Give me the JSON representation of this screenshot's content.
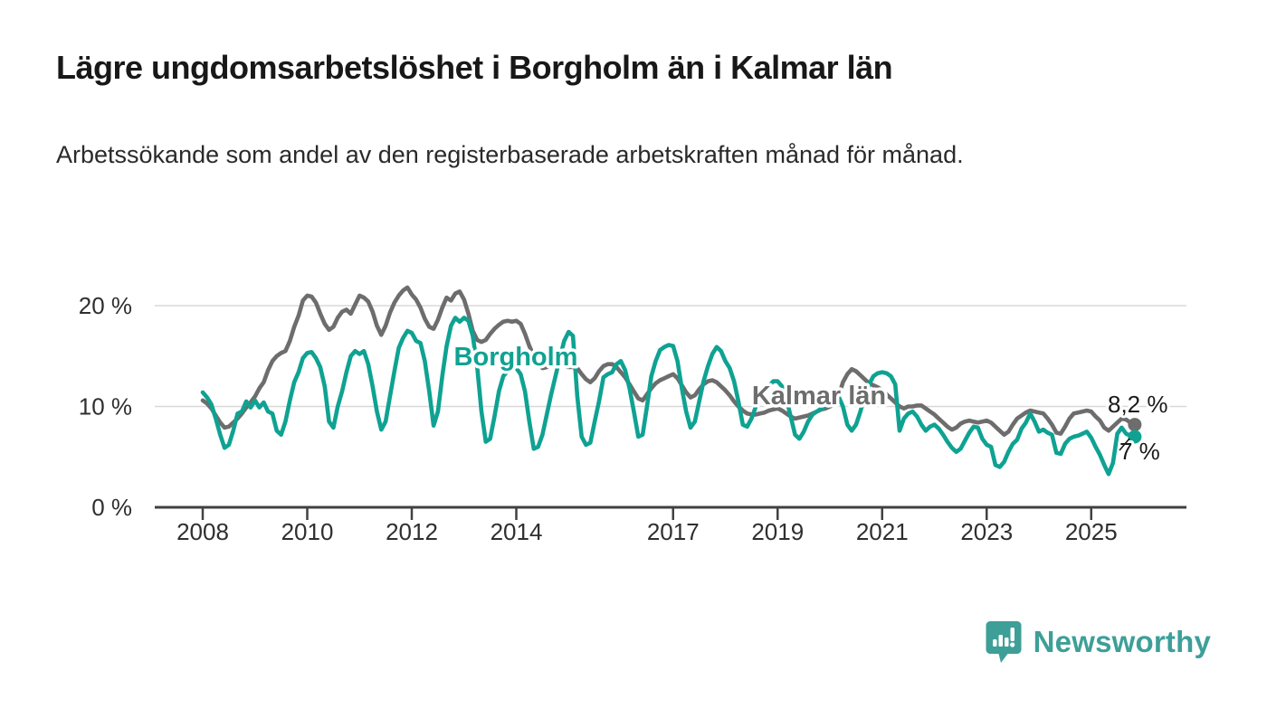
{
  "title": "Lägre ungdomsarbetslöshet i Borgholm än i Kalmar län",
  "subtitle": "Arbetssökande som andel av den registerbaserade arbetskraften månad för månad.",
  "branding": {
    "name": "Newsworthy",
    "color": "#3d9f98",
    "icon": "bar-chart-speech-bubble-icon"
  },
  "chart_data": {
    "type": "line",
    "unit": "%",
    "frequency": "monthly",
    "x_start": "2008-01",
    "x_end": "2025-11",
    "grid": "horizontal",
    "ylim": [
      0,
      23
    ],
    "y_ticks": [
      0,
      10,
      20
    ],
    "y_tick_labels": [
      "0 %",
      "10 %",
      "20 %"
    ],
    "x_tick_years": [
      2008,
      2010,
      2012,
      2014,
      2017,
      2019,
      2021,
      2023,
      2025
    ],
    "x_tick_labels": [
      "2008",
      "2010",
      "2012",
      "2014",
      "2017",
      "2019",
      "2021",
      "2023",
      "2025"
    ],
    "series": [
      {
        "name": "Kalmar län",
        "color": "#6d6d6d",
        "end_value": 8.2,
        "end_label": "8,2 %",
        "values": [
          10.6,
          10.3,
          9.8,
          9.1,
          8.4,
          7.9,
          8.0,
          8.4,
          8.8,
          9.3,
          9.9,
          10.4,
          11.0,
          11.8,
          12.4,
          13.6,
          14.5,
          15.0,
          15.3,
          15.5,
          16.5,
          17.9,
          19.0,
          20.5,
          21.0,
          20.9,
          20.3,
          19.2,
          18.2,
          17.6,
          17.9,
          18.8,
          19.4,
          19.6,
          19.2,
          20.1,
          21.0,
          20.8,
          20.4,
          19.4,
          18.0,
          17.1,
          18.0,
          19.3,
          20.3,
          21.0,
          21.5,
          21.8,
          21.1,
          20.6,
          19.8,
          18.7,
          17.9,
          17.7,
          18.6,
          19.8,
          20.8,
          20.5,
          21.2,
          21.4,
          20.6,
          19.2,
          17.5,
          16.6,
          16.4,
          16.6,
          17.2,
          17.7,
          18.1,
          18.4,
          18.5,
          18.4,
          18.5,
          18.2,
          17.2,
          16.0,
          15.0,
          14.2,
          13.8,
          13.9,
          14.1,
          14.2,
          14.3,
          14.0,
          13.9,
          13.9,
          13.8,
          13.2,
          12.7,
          12.4,
          12.8,
          13.5,
          14.0,
          14.2,
          14.2,
          13.9,
          13.4,
          12.9,
          12.2,
          11.5,
          10.8,
          10.6,
          11.2,
          11.8,
          12.3,
          12.6,
          12.8,
          13.0,
          13.2,
          12.8,
          12.1,
          11.4,
          10.9,
          11.1,
          11.7,
          12.2,
          12.5,
          12.6,
          12.4,
          12.0,
          11.6,
          11.1,
          10.5,
          10.0,
          9.6,
          9.3,
          9.2,
          9.2,
          9.3,
          9.4,
          9.6,
          9.7,
          9.8,
          9.6,
          9.3,
          9.0,
          8.8,
          8.9,
          9.0,
          9.1,
          9.3,
          9.5,
          9.7,
          9.8,
          10.0,
          10.2,
          11.0,
          12.4,
          13.2,
          13.7,
          13.5,
          13.1,
          12.7,
          12.3,
          12.1,
          11.9,
          11.6,
          11.2,
          10.8,
          10.4,
          10.0,
          9.8,
          10.0,
          10.0,
          10.1,
          10.1,
          9.8,
          9.5,
          9.2,
          8.8,
          8.4,
          8.0,
          7.7,
          7.9,
          8.3,
          8.5,
          8.6,
          8.5,
          8.4,
          8.5,
          8.6,
          8.4,
          8.0,
          7.6,
          7.2,
          7.5,
          8.2,
          8.8,
          9.1,
          9.4,
          9.6,
          9.5,
          9.4,
          9.3,
          8.8,
          8.2,
          7.4,
          7.3,
          8.0,
          8.8,
          9.3,
          9.4,
          9.5,
          9.6,
          9.5,
          9.0,
          8.6,
          7.9,
          7.6,
          8.0,
          8.4,
          8.8,
          8.7,
          8.4,
          8.2
        ]
      },
      {
        "name": "Borgholm",
        "color": "#0fa292",
        "end_value": 7.0,
        "end_label": "7 %",
        "values": [
          11.4,
          10.9,
          10.2,
          8.8,
          7.2,
          5.9,
          6.2,
          7.6,
          9.3,
          9.5,
          10.5,
          9.9,
          10.6,
          9.9,
          10.4,
          9.5,
          9.3,
          7.6,
          7.2,
          8.5,
          10.6,
          12.4,
          13.4,
          14.8,
          15.3,
          15.4,
          14.8,
          13.9,
          12.0,
          8.5,
          7.9,
          10.0,
          11.5,
          13.4,
          15.0,
          15.5,
          15.2,
          15.5,
          14.2,
          12.0,
          9.5,
          7.7,
          8.5,
          11.0,
          13.5,
          15.8,
          16.8,
          17.5,
          17.3,
          16.5,
          16.3,
          14.5,
          11.5,
          8.1,
          9.5,
          13.0,
          16.0,
          18.0,
          18.8,
          18.4,
          18.8,
          18.5,
          17.0,
          14.0,
          9.5,
          6.5,
          6.8,
          9.0,
          11.5,
          13.0,
          13.5,
          14.0,
          13.8,
          13.2,
          11.5,
          8.5,
          5.8,
          6.0,
          7.2,
          9.2,
          11.2,
          13.0,
          14.8,
          16.5,
          17.4,
          17.0,
          11.0,
          7.0,
          6.2,
          6.4,
          8.5,
          10.5,
          12.9,
          13.2,
          13.4,
          14.2,
          14.5,
          13.6,
          11.8,
          9.5,
          7.0,
          7.2,
          10.0,
          13.0,
          14.5,
          15.6,
          15.9,
          16.1,
          16.0,
          14.5,
          11.8,
          9.5,
          7.9,
          8.5,
          10.5,
          12.5,
          14.0,
          15.2,
          15.9,
          15.5,
          14.5,
          13.8,
          12.5,
          10.5,
          8.2,
          8.0,
          8.8,
          10.0,
          10.8,
          11.5,
          12.0,
          12.5,
          12.5,
          12.0,
          10.8,
          9.0,
          7.2,
          6.8,
          7.5,
          8.5,
          9.2,
          9.5,
          9.8,
          10.0,
          10.5,
          10.3,
          11.0,
          10.0,
          8.2,
          7.6,
          8.2,
          9.5,
          11.0,
          12.2,
          13.0,
          13.3,
          13.4,
          13.3,
          13.0,
          12.2,
          7.6,
          8.8,
          9.3,
          9.5,
          9.0,
          8.2,
          7.6,
          8.0,
          8.2,
          7.8,
          7.2,
          6.5,
          5.9,
          5.5,
          5.8,
          6.6,
          7.4,
          8.0,
          7.9,
          6.8,
          6.2,
          6.0,
          4.2,
          4.0,
          4.5,
          5.5,
          6.3,
          6.7,
          7.8,
          8.4,
          9.3,
          8.5,
          7.5,
          7.7,
          7.4,
          7.2,
          5.4,
          5.3,
          6.3,
          6.8,
          7.0,
          7.1,
          7.3,
          7.5,
          6.9,
          6.0,
          5.2,
          4.2,
          3.3,
          4.4,
          7.3,
          7.9,
          7.3,
          7.1,
          7.0
        ]
      }
    ]
  }
}
